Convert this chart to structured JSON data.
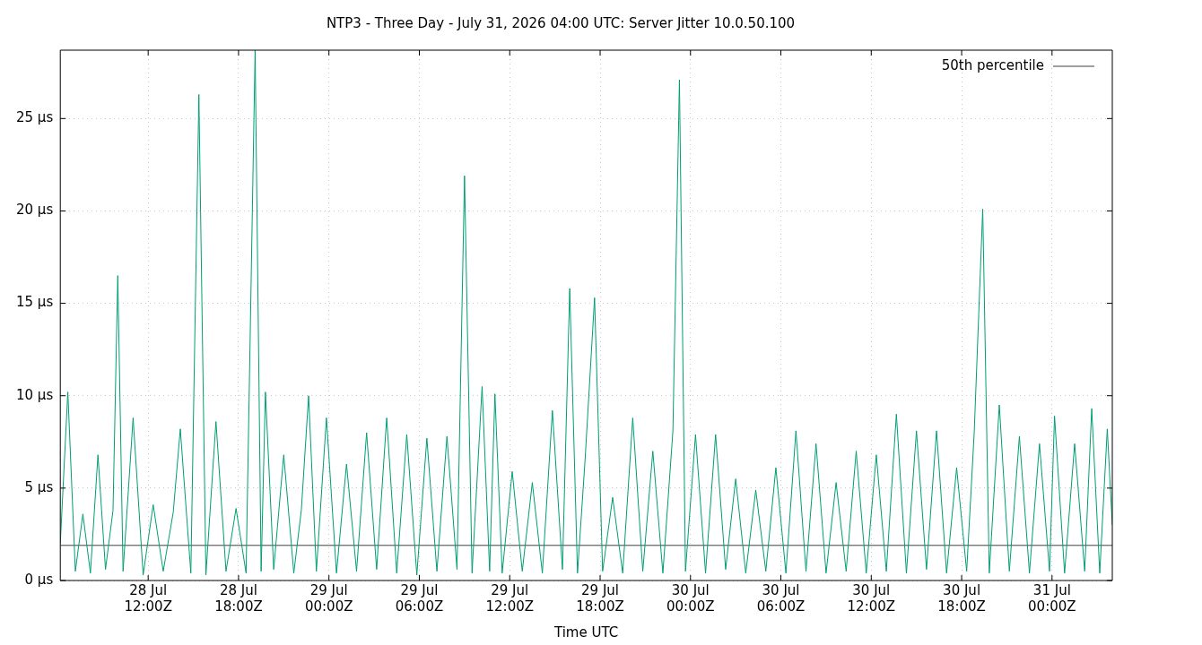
{
  "chart_data": {
    "type": "line",
    "title": "NTP3 - Three Day - July 31, 2026 04:00 UTC: Server Jitter 10.0.50.100",
    "xlabel": "Time UTC",
    "xlim": [
      "2026-07-28T06:10",
      "2026-07-31T04:00"
    ],
    "xticks": [
      {
        "value": "2026-07-28T12:00",
        "label": "28 Jul\n12:00Z"
      },
      {
        "value": "2026-07-28T18:00",
        "label": "28 Jul\n18:00Z"
      },
      {
        "value": "2026-07-29T00:00",
        "label": "29 Jul\n00:00Z"
      },
      {
        "value": "2026-07-29T06:00",
        "label": "29 Jul\n06:00Z"
      },
      {
        "value": "2026-07-29T12:00",
        "label": "29 Jul\n12:00Z"
      },
      {
        "value": "2026-07-29T18:00",
        "label": "29 Jul\n18:00Z"
      },
      {
        "value": "2026-07-30T00:00",
        "label": "30 Jul\n00:00Z"
      },
      {
        "value": "2026-07-30T06:00",
        "label": "30 Jul\n06:00Z"
      },
      {
        "value": "2026-07-30T12:00",
        "label": "30 Jul\n12:00Z"
      },
      {
        "value": "2026-07-30T18:00",
        "label": "30 Jul\n18:00Z"
      },
      {
        "value": "2026-07-31T00:00",
        "label": "31 Jul\n00:00Z"
      }
    ],
    "ylim": [
      0,
      28.7
    ],
    "yticks": [
      {
        "value": 0,
        "label": "0 µs"
      },
      {
        "value": 5,
        "label": "5 µs"
      },
      {
        "value": 10,
        "label": "10 µs"
      },
      {
        "value": 15,
        "label": "15 µs"
      },
      {
        "value": 20,
        "label": "20 µs"
      },
      {
        "value": 25,
        "label": "25 µs"
      }
    ],
    "grid": true,
    "legend": "top right",
    "marker": "none",
    "line_style": "solid",
    "series": [
      {
        "name": "50th percentile",
        "color": "#404040",
        "x": [
          "2026-07-28T06:10",
          "2026-07-31T04:00"
        ],
        "values": [
          1.9,
          1.9
        ]
      },
      {
        "color": "#009e73",
        "x": [
          "2026-07-28T06:10",
          "2026-07-28T06:40",
          "2026-07-28T07:10",
          "2026-07-28T07:40",
          "2026-07-28T08:10",
          "2026-07-28T08:40",
          "2026-07-28T09:10",
          "2026-07-28T09:40",
          "2026-07-28T09:59",
          "2026-07-28T10:20",
          "2026-07-28T11:00",
          "2026-07-28T11:40",
          "2026-07-28T12:20",
          "2026-07-28T13:00",
          "2026-07-28T13:40",
          "2026-07-28T14:08",
          "2026-07-28T14:50",
          "2026-07-28T15:22",
          "2026-07-28T15:50",
          "2026-07-28T16:30",
          "2026-07-28T17:10",
          "2026-07-28T17:50",
          "2026-07-28T18:30",
          "2026-07-28T19:06",
          "2026-07-28T19:30",
          "2026-07-28T19:47",
          "2026-07-28T20:20",
          "2026-07-28T21:00",
          "2026-07-28T21:40",
          "2026-07-28T22:10",
          "2026-07-28T22:39",
          "2026-07-28T23:10",
          "2026-07-28T23:50",
          "2026-07-29T00:30",
          "2026-07-29T01:10",
          "2026-07-29T01:50",
          "2026-07-29T02:30",
          "2026-07-29T03:10",
          "2026-07-29T03:50",
          "2026-07-29T04:30",
          "2026-07-29T05:10",
          "2026-07-29T05:50",
          "2026-07-29T06:30",
          "2026-07-29T07:10",
          "2026-07-29T07:50",
          "2026-07-29T08:30",
          "2026-07-29T09:00",
          "2026-07-29T09:30",
          "2026-07-29T10:10",
          "2026-07-29T10:40",
          "2026-07-29T11:01",
          "2026-07-29T11:30",
          "2026-07-29T12:10",
          "2026-07-29T12:50",
          "2026-07-29T13:30",
          "2026-07-29T14:10",
          "2026-07-29T14:50",
          "2026-07-29T15:30",
          "2026-07-29T15:59",
          "2026-07-29T16:30",
          "2026-07-29T17:00",
          "2026-07-29T17:38",
          "2026-07-29T18:10",
          "2026-07-29T18:50",
          "2026-07-29T19:30",
          "2026-07-29T20:10",
          "2026-07-29T20:50",
          "2026-07-29T21:30",
          "2026-07-29T22:10",
          "2026-07-29T22:50",
          "2026-07-29T23:16",
          "2026-07-29T23:40",
          "2026-07-30T00:20",
          "2026-07-30T01:00",
          "2026-07-30T01:40",
          "2026-07-30T02:20",
          "2026-07-30T03:00",
          "2026-07-30T03:40",
          "2026-07-30T04:20",
          "2026-07-30T05:00",
          "2026-07-30T05:40",
          "2026-07-30T06:20",
          "2026-07-30T07:00",
          "2026-07-30T07:40",
          "2026-07-30T08:20",
          "2026-07-30T09:00",
          "2026-07-30T09:40",
          "2026-07-30T10:20",
          "2026-07-30T11:00",
          "2026-07-30T11:40",
          "2026-07-30T12:20",
          "2026-07-30T13:00",
          "2026-07-30T13:40",
          "2026-07-30T14:20",
          "2026-07-30T15:00",
          "2026-07-30T15:40",
          "2026-07-30T16:20",
          "2026-07-30T17:00",
          "2026-07-30T17:40",
          "2026-07-30T18:20",
          "2026-07-30T18:50",
          "2026-07-30T19:24",
          "2026-07-30T19:50",
          "2026-07-30T20:30",
          "2026-07-30T21:10",
          "2026-07-30T21:50",
          "2026-07-30T22:30",
          "2026-07-30T23:10",
          "2026-07-30T23:50",
          "2026-07-31T00:10",
          "2026-07-31T00:50",
          "2026-07-31T01:30",
          "2026-07-31T02:10",
          "2026-07-31T02:38",
          "2026-07-31T03:10",
          "2026-07-31T03:40",
          "2026-07-31T04:00"
        ],
        "values": [
          2.0,
          10.2,
          0.5,
          3.6,
          0.4,
          6.8,
          0.6,
          3.8,
          16.5,
          0.5,
          8.8,
          0.3,
          4.1,
          0.5,
          3.7,
          8.2,
          0.4,
          26.3,
          0.3,
          8.6,
          0.5,
          3.9,
          0.4,
          28.7,
          0.5,
          10.2,
          0.6,
          6.8,
          0.4,
          3.8,
          10.0,
          0.5,
          8.8,
          0.4,
          6.3,
          0.5,
          8.0,
          0.6,
          8.8,
          0.4,
          7.9,
          0.3,
          7.7,
          0.5,
          7.8,
          0.6,
          21.9,
          0.4,
          10.5,
          0.5,
          10.1,
          0.4,
          5.9,
          0.5,
          5.3,
          0.4,
          9.2,
          0.6,
          15.8,
          0.4,
          6.5,
          15.3,
          0.5,
          4.5,
          0.4,
          8.8,
          0.5,
          7.0,
          0.4,
          8.1,
          27.1,
          0.5,
          7.9,
          0.4,
          7.9,
          0.6,
          5.5,
          0.4,
          4.9,
          0.5,
          6.1,
          0.4,
          8.1,
          0.5,
          7.4,
          0.4,
          5.3,
          0.5,
          7.0,
          0.4,
          6.8,
          0.5,
          9.0,
          0.4,
          8.1,
          0.6,
          8.1,
          0.4,
          6.1,
          0.5,
          8.0,
          20.1,
          0.4,
          9.5,
          0.5,
          7.8,
          0.4,
          7.4,
          0.5,
          8.9,
          0.4,
          7.4,
          0.5,
          9.3,
          0.4,
          8.2,
          3.0
        ]
      }
    ]
  }
}
